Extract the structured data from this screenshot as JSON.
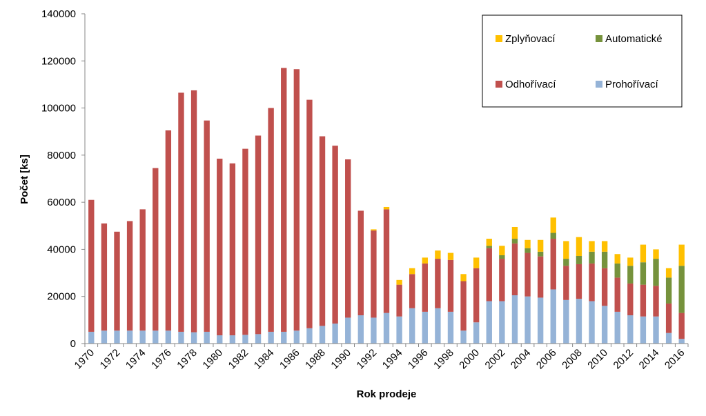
{
  "chart_data": {
    "type": "bar",
    "stacked": true,
    "xlabel": "Rok prodeje",
    "ylabel": "Počet [ks]",
    "ylim": [
      0,
      140000
    ],
    "yticks": [
      0,
      20000,
      40000,
      60000,
      80000,
      100000,
      120000,
      140000
    ],
    "yticks_labels": [
      "0",
      "20000",
      "40000",
      "60000",
      "80000",
      "100000",
      "120000",
      "140000"
    ],
    "grid": false,
    "legend_position": "top-right",
    "categories": [
      "1970",
      "1971",
      "1972",
      "1973",
      "1974",
      "1975",
      "1976",
      "1977",
      "1978",
      "1979",
      "1980",
      "1981",
      "1982",
      "1983",
      "1984",
      "1985",
      "1986",
      "1987",
      "1988",
      "1989",
      "1990",
      "1991",
      "1992",
      "1993",
      "1994",
      "1995",
      "1996",
      "1997",
      "1998",
      "1999",
      "2000",
      "2001",
      "2002",
      "2003",
      "2004",
      "2005",
      "2006",
      "2007",
      "2008",
      "2009",
      "2010",
      "2011",
      "2012",
      "2013",
      "2014",
      "2015",
      "2016"
    ],
    "xtick_labels": [
      "1970",
      "",
      "1972",
      "",
      "1974",
      "",
      "1976",
      "",
      "1978",
      "",
      "1980",
      "",
      "1982",
      "",
      "1984",
      "",
      "1986",
      "",
      "1988",
      "",
      "1990",
      "",
      "1992",
      "",
      "1994",
      "",
      "1996",
      "",
      "1998",
      "",
      "2000",
      "",
      "2002",
      "",
      "2004",
      "",
      "2006",
      "",
      "2008",
      "",
      "2010",
      "",
      "2012",
      "",
      "2014",
      "",
      "2016"
    ],
    "series": [
      {
        "name": "Prohořívací",
        "color": "#95b3d7",
        "values": [
          5000,
          5500,
          5500,
          5500,
          5500,
          5500,
          5500,
          5000,
          4800,
          5000,
          3500,
          3500,
          3700,
          4000,
          5000,
          5000,
          5500,
          6500,
          7500,
          8500,
          11000,
          12000,
          11000,
          13000,
          11500,
          15000,
          13500,
          15000,
          13500,
          5500,
          9000,
          18000,
          18000,
          20500,
          20000,
          19500,
          23000,
          18500,
          19000,
          18000,
          16000,
          13500,
          12000,
          11500,
          11500,
          4500,
          2000
        ]
      },
      {
        "name": "Odhořívací",
        "color": "#c0504d",
        "values": [
          56000,
          45500,
          42000,
          46500,
          51500,
          69000,
          85000,
          101500,
          102700,
          89700,
          75000,
          73000,
          79000,
          84300,
          95000,
          112000,
          111000,
          97000,
          80500,
          75500,
          67200,
          44400,
          37000,
          44000,
          13500,
          14500,
          20500,
          21000,
          22000,
          21000,
          23000,
          22500,
          18000,
          22000,
          18500,
          17500,
          21500,
          14500,
          14700,
          16000,
          16000,
          14500,
          13500,
          13500,
          13000,
          12500,
          11000
        ]
      },
      {
        "name": "Automatické",
        "color": "#76923c",
        "values": [
          0,
          0,
          0,
          0,
          0,
          0,
          0,
          0,
          0,
          0,
          0,
          0,
          0,
          0,
          0,
          0,
          0,
          0,
          0,
          0,
          0,
          0,
          0,
          0,
          0,
          0,
          0,
          0,
          0,
          0,
          0,
          1000,
          1500,
          2000,
          2000,
          2000,
          2500,
          3000,
          3500,
          5000,
          7000,
          6000,
          7500,
          9500,
          11500,
          11000,
          20000
        ]
      },
      {
        "name": "Zplyňovací",
        "color": "#ffc000",
        "values": [
          0,
          0,
          0,
          0,
          0,
          0,
          0,
          0,
          0,
          0,
          0,
          0,
          0,
          0,
          0,
          0,
          0,
          0,
          0,
          0,
          0,
          0,
          500,
          1000,
          2000,
          2500,
          2500,
          3500,
          3000,
          3000,
          4500,
          3000,
          4000,
          5000,
          3500,
          5000,
          6500,
          7500,
          8000,
          4500,
          4500,
          4000,
          3500,
          7500,
          4000,
          4000,
          9000
        ]
      }
    ],
    "legend_order": [
      "Zplyňovací",
      "Automatické",
      "Odhořívací",
      "Prohořívací"
    ]
  }
}
